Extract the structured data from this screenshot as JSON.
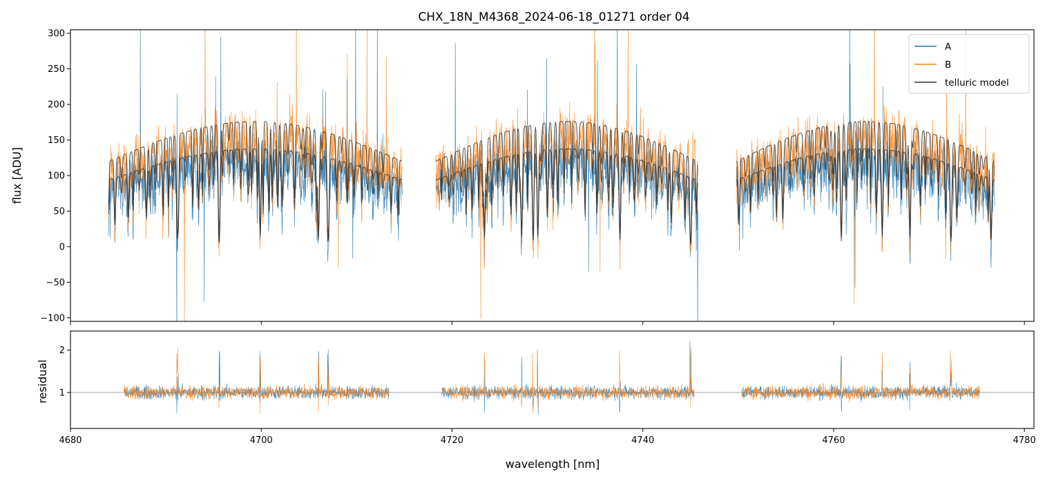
{
  "chart_data": {
    "type": "line",
    "title": "CHX_18N_M4368_2024-06-18_01271  order 04",
    "xlabel": "wavelength [nm]",
    "xlim": [
      4680,
      4781
    ],
    "xticks": [
      4680,
      4700,
      4720,
      4740,
      4760,
      4780
    ],
    "colors": {
      "A": "#1f77b4",
      "B": "#ff7f0e",
      "telluric": "#333333",
      "reference": "#888888"
    },
    "panels": [
      {
        "name": "flux",
        "ylabel": "flux [ADU]",
        "ylim": [
          -105,
          305
        ],
        "yticks": [
          -100,
          -50,
          0,
          50,
          100,
          150,
          200,
          250,
          300
        ],
        "ytick_labels": [
          "−100",
          "−50",
          "0",
          "50",
          "100",
          "150",
          "200",
          "250",
          "300"
        ],
        "legend": {
          "location": "top-right",
          "entries": [
            "A",
            "B",
            "telluric model"
          ]
        },
        "wavelength_segments": [
          [
            4684.0,
            4714.8
          ],
          [
            4718.3,
            4745.8
          ],
          [
            4749.8,
            4776.9
          ]
        ],
        "series": [
          {
            "name": "A",
            "label": "A",
            "continuum_level": 110,
            "noise_amplitude": 45
          },
          {
            "name": "B",
            "label": "B",
            "continuum_level": 140,
            "noise_amplitude": 50
          },
          {
            "name": "telluric model",
            "label": "telluric model",
            "continuum_level_A": 125,
            "continuum_level_B": 160
          }
        ]
      },
      {
        "name": "residual",
        "ylabel": "residual",
        "ylim": [
          0.15,
          2.45
        ],
        "yticks": [
          1,
          2
        ],
        "ytick_labels": [
          "1",
          "2"
        ],
        "reference_line": 1,
        "wavelength_segments": [
          [
            4685.6,
            4713.4
          ],
          [
            4718.9,
            4745.4
          ],
          [
            4750.4,
            4775.3
          ]
        ],
        "series": [
          {
            "name": "A",
            "center": 1.0,
            "noise_amplitude": 0.25
          },
          {
            "name": "B",
            "center": 1.0,
            "noise_amplitude": 0.25
          }
        ]
      }
    ]
  }
}
